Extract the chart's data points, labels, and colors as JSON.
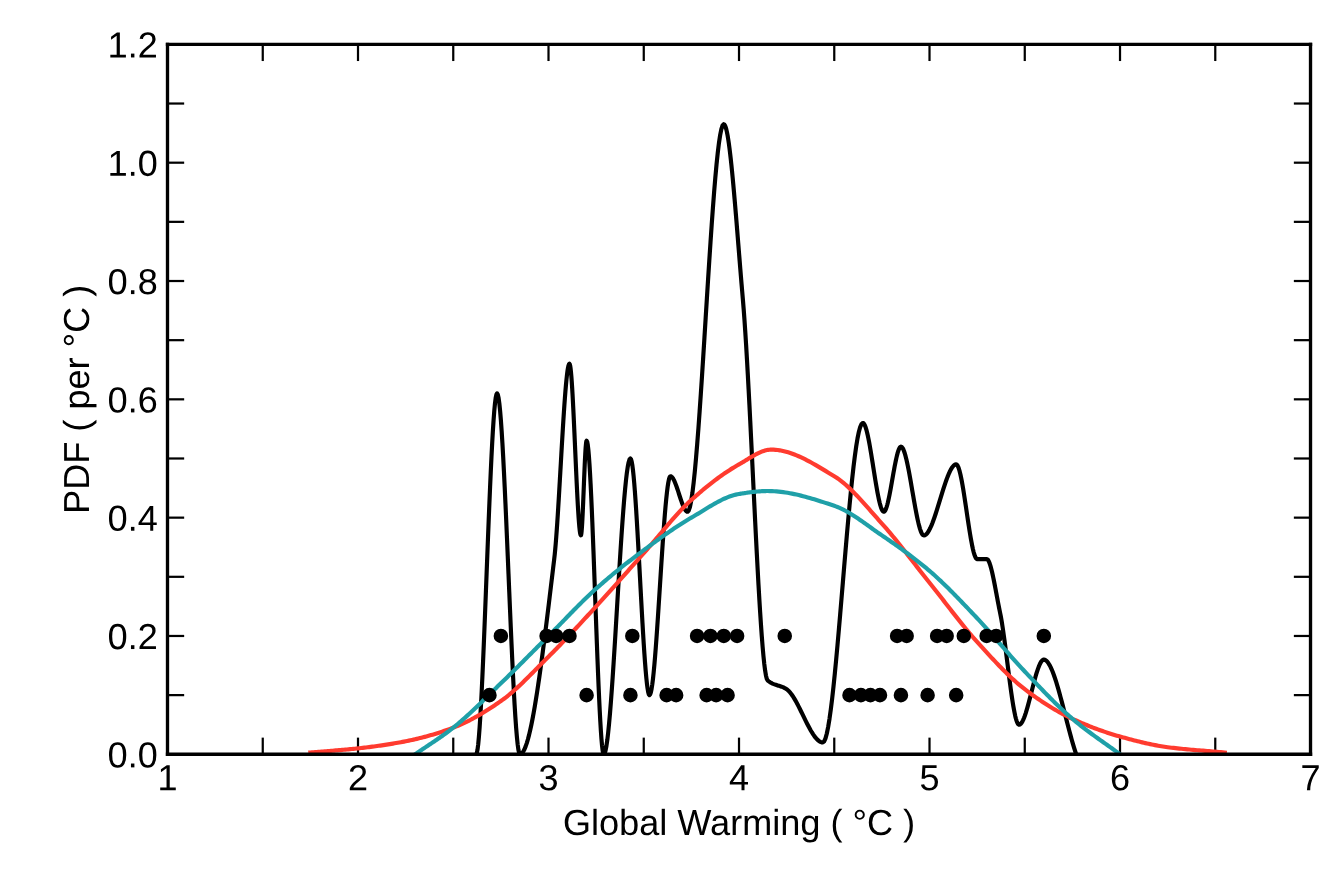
{
  "chart_data": {
    "type": "line",
    "xlabel": "Global Warming ( °C )",
    "ylabel": "PDF ( per °C )",
    "xlim": [
      1,
      7
    ],
    "ylim": [
      0,
      1.2
    ],
    "xticks": [
      1,
      {
        "value": 1.5,
        "label": null
      },
      2,
      {
        "value": 2.5,
        "label": null
      },
      3,
      {
        "value": 3.5,
        "label": null
      },
      4,
      {
        "value": 4.5,
        "label": null
      },
      5,
      {
        "value": 5.5,
        "label": null
      },
      6,
      {
        "value": 6.5,
        "label": null
      },
      7
    ],
    "yticks": [
      {
        "value": 0,
        "label": "0.0"
      },
      {
        "value": 0.1,
        "label": null
      },
      {
        "value": 0.2,
        "label": "0.2"
      },
      {
        "value": 0.3,
        "label": null
      },
      {
        "value": 0.4,
        "label": "0.4"
      },
      {
        "value": 0.5,
        "label": null
      },
      {
        "value": 0.6,
        "label": "0.6"
      },
      {
        "value": 0.7,
        "label": null
      },
      {
        "value": 0.8,
        "label": "0.8"
      },
      {
        "value": 0.9,
        "label": null
      },
      {
        "value": 1.0,
        "label": "1.0"
      },
      {
        "value": 1.1,
        "label": null
      },
      {
        "value": 1.2,
        "label": "1.2"
      }
    ],
    "grid": false,
    "series": [
      {
        "color": "#000000",
        "x": [
          2.62,
          2.73,
          2.85,
          3.03,
          3.11,
          3.17,
          3.2,
          3.29,
          3.43,
          3.53,
          3.64,
          3.73,
          3.92,
          4.02,
          4.15,
          4.25,
          4.44,
          4.65,
          4.76,
          4.85,
          4.97,
          5.14,
          5.25,
          5.3,
          5.37,
          5.47,
          5.6,
          5.77
        ],
        "values": [
          0.0,
          0.61,
          0.0,
          0.33,
          0.66,
          0.37,
          0.53,
          0.0,
          0.5,
          0.1,
          0.47,
          0.41,
          1.065,
          0.77,
          0.125,
          0.11,
          0.02,
          0.56,
          0.41,
          0.52,
          0.37,
          0.49,
          0.33,
          0.33,
          0.24,
          0.05,
          0.16,
          0.0
        ]
      },
      {
        "color": "#ff3b2f",
        "x": [
          1.75,
          2.0,
          2.25,
          2.5,
          2.75,
          3.0,
          3.25,
          3.5,
          3.75,
          4.0,
          4.17,
          4.5,
          4.75,
          5.0,
          5.25,
          5.5,
          5.75,
          6.0,
          6.25,
          6.55
        ],
        "values": [
          0.003,
          0.01,
          0.022,
          0.045,
          0.09,
          0.165,
          0.25,
          0.34,
          0.43,
          0.49,
          0.515,
          0.47,
          0.39,
          0.29,
          0.19,
          0.11,
          0.06,
          0.03,
          0.012,
          0.003
        ]
      },
      {
        "color": "#1fa0a8",
        "x": [
          2.3,
          2.5,
          2.75,
          3.0,
          3.25,
          3.5,
          3.75,
          4.0,
          4.15,
          4.5,
          4.75,
          5.0,
          5.25,
          5.5,
          5.75,
          6.0
        ],
        "values": [
          0.0,
          0.045,
          0.12,
          0.2,
          0.28,
          0.345,
          0.4,
          0.44,
          0.445,
          0.42,
          0.37,
          0.31,
          0.23,
          0.14,
          0.06,
          0.0
        ]
      },
      {
        "type": "scatter",
        "color": "#000000",
        "marker": "circle",
        "x": [
          2.75,
          2.99,
          3.04,
          3.11,
          3.44,
          3.78,
          3.85,
          3.92,
          3.99,
          4.24,
          4.83,
          4.88,
          5.04,
          5.09,
          5.18,
          5.3,
          5.35,
          5.6
        ],
        "values": [
          0.2,
          0.2,
          0.2,
          0.2,
          0.2,
          0.2,
          0.2,
          0.2,
          0.2,
          0.2,
          0.2,
          0.2,
          0.2,
          0.2,
          0.2,
          0.2,
          0.2,
          0.2
        ]
      },
      {
        "type": "scatter",
        "color": "#000000",
        "marker": "circle",
        "x": [
          2.69,
          3.2,
          3.43,
          3.62,
          3.67,
          3.83,
          3.88,
          3.94,
          4.58,
          4.64,
          4.69,
          4.74,
          4.85,
          4.99,
          5.14
        ],
        "values": [
          0.1,
          0.1,
          0.1,
          0.1,
          0.1,
          0.1,
          0.1,
          0.1,
          0.1,
          0.1,
          0.1,
          0.1,
          0.1,
          0.1,
          0.1
        ]
      }
    ]
  }
}
